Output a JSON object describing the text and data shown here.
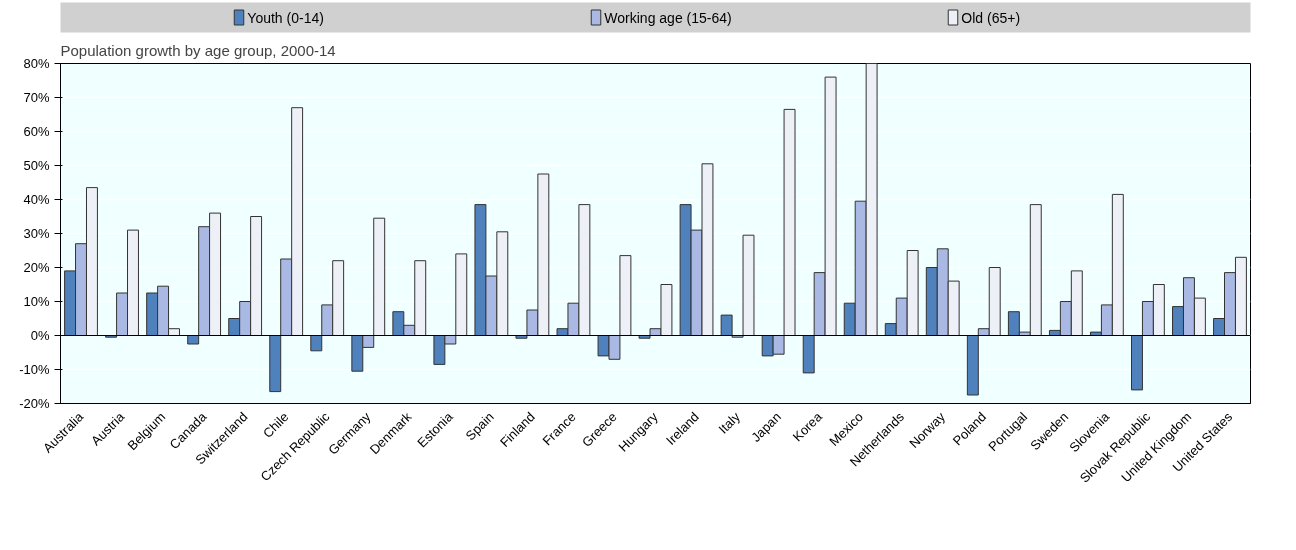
{
  "chart_data": {
    "type": "bar",
    "title": "Population growth by age group, 2000-14",
    "categories": [
      "Australia",
      "Austria",
      "Belgium",
      "Canada",
      "Switzerland",
      "Chile",
      "Czech Republic",
      "Germany",
      "Denmark",
      "Estonia",
      "Spain",
      "Finland",
      "France",
      "Greece",
      "Hungary",
      "Ireland",
      "Italy",
      "Japan",
      "Korea",
      "Mexico",
      "Netherlands",
      "Norway",
      "Poland",
      "Portugal",
      "Sweden",
      "Slovenia",
      "Slovak Republic",
      "United Kingdom",
      "United States"
    ],
    "series": [
      {
        "name": "Youth (0-14)",
        "color": "#4f81bd",
        "values": [
          19,
          -0.5,
          12.5,
          -2.5,
          5,
          -16.5,
          -4.5,
          -10.5,
          7,
          -8.5,
          38.5,
          -0.8,
          2,
          -6,
          -0.8,
          38.5,
          6,
          -6,
          -11,
          9.5,
          3.5,
          20,
          -17.5,
          7,
          1.5,
          1,
          -16,
          8.5,
          5
        ]
      },
      {
        "name": "Working age (15-64)",
        "color": "#a9b9e3",
        "values": [
          27,
          12.5,
          14.5,
          32,
          10,
          22.5,
          9,
          -3.5,
          3,
          -2.5,
          17.5,
          7.5,
          9.5,
          -7,
          2,
          31,
          -0.5,
          -5.5,
          18.5,
          39.5,
          11,
          25.5,
          2,
          1,
          10,
          9,
          10,
          17,
          18.5
        ]
      },
      {
        "name": "Old (65+)",
        "color": "#eef0f8",
        "values": [
          43.5,
          31,
          2,
          36,
          35,
          67,
          22,
          34.5,
          22,
          24,
          30.5,
          47.5,
          38.5,
          23.5,
          15,
          50.5,
          29.5,
          66.5,
          76,
          80,
          25,
          16,
          20,
          38.5,
          19,
          41.5,
          15,
          11,
          23
        ]
      }
    ],
    "ylim": [
      -20,
      80
    ],
    "yticks": [
      {
        "value": -20,
        "label": "-20%"
      },
      {
        "value": -10,
        "label": "-10%"
      },
      {
        "value": 0,
        "label": "0%"
      },
      {
        "value": 10,
        "label": "10%"
      },
      {
        "value": 20,
        "label": "20%"
      },
      {
        "value": 30,
        "label": "30%"
      },
      {
        "value": 40,
        "label": "40%"
      },
      {
        "value": 50,
        "label": "50%"
      },
      {
        "value": 60,
        "label": "60%"
      },
      {
        "value": 70,
        "label": "70%"
      },
      {
        "value": 80,
        "label": "80%"
      }
    ],
    "grid": "y",
    "legend": "top"
  }
}
